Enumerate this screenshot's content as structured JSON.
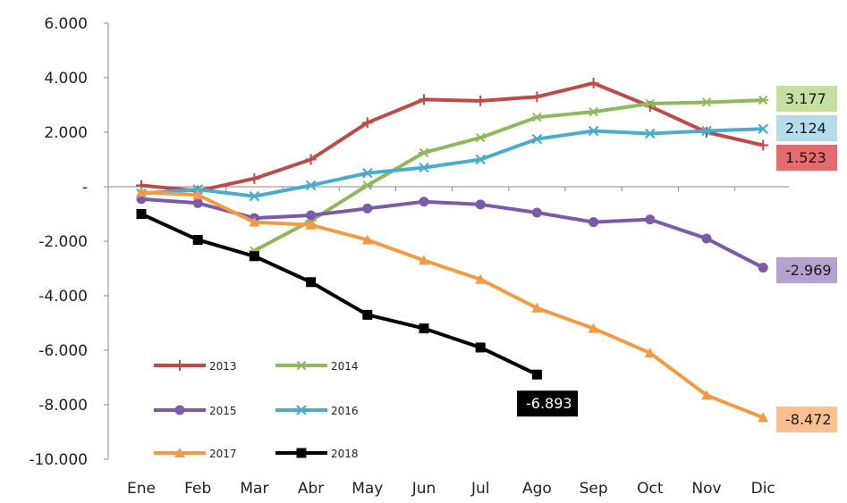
{
  "chart_data": {
    "type": "line",
    "title": "",
    "xlabel": "",
    "ylabel": "",
    "categories": [
      "Ene",
      "Feb",
      "Mar",
      "Abr",
      "May",
      "Jun",
      "Jul",
      "Ago",
      "Sep",
      "Oct",
      "Nov",
      "Dic"
    ],
    "ylim": [
      -10000,
      6000
    ],
    "y_ticks": [
      6000,
      4000,
      2000,
      0,
      -2000,
      -4000,
      -6000,
      -8000,
      -10000
    ],
    "y_tick_labels": [
      "6.000",
      "4.000",
      "2.000",
      "-",
      "-2.000",
      "-4.000",
      "-6.000",
      "-8.000",
      "-10.000"
    ],
    "grid": false,
    "legend_position": "bottom-left",
    "series": [
      {
        "name": "2013",
        "color": "#be4b48",
        "marker": "plus",
        "values": [
          50,
          -150,
          300,
          1000,
          2350,
          3200,
          3150,
          3300,
          3800,
          2950,
          2000,
          1523
        ],
        "end_label": "1.523",
        "end_label_bg": "#e46c6a",
        "end_label_fg": "#1a1a1a"
      },
      {
        "name": "2014",
        "color": "#8fb85a",
        "marker": "asterisk",
        "values": [
          null,
          null,
          -2350,
          -1250,
          50,
          1250,
          1800,
          2550,
          2750,
          3050,
          3100,
          3177
        ],
        "end_label": "3.177",
        "end_label_bg": "#c6dea0",
        "end_label_fg": "#1a1a1a"
      },
      {
        "name": "2015",
        "color": "#7b5ba8",
        "marker": "circle",
        "values": [
          -450,
          -600,
          -1150,
          -1050,
          -800,
          -550,
          -650,
          -950,
          -1300,
          -1200,
          -1900,
          -2969
        ],
        "end_label": "-2.969",
        "end_label_bg": "#b3a2cd",
        "end_label_fg": "#1a1a1a"
      },
      {
        "name": "2016",
        "color": "#4aaccb",
        "marker": "x",
        "values": [
          -250,
          -100,
          -350,
          50,
          500,
          700,
          1000,
          1750,
          2050,
          1950,
          2050,
          2124
        ],
        "end_label": "2.124",
        "end_label_bg": "#b4dcea",
        "end_label_fg": "#1a1a1a"
      },
      {
        "name": "2017",
        "color": "#f39a45",
        "marker": "triangle",
        "values": [
          -200,
          -300,
          -1300,
          -1400,
          -1950,
          -2700,
          -3400,
          -4450,
          -5200,
          -6100,
          -7650,
          -8472
        ],
        "end_label": "-8.472",
        "end_label_bg": "#fac090",
        "end_label_fg": "#1a1a1a"
      },
      {
        "name": "2018",
        "color": "#000000",
        "marker": "square",
        "values": [
          -1000,
          -1950,
          -2550,
          -3500,
          -4700,
          -5200,
          -5900,
          -6893,
          null,
          null,
          null,
          null
        ],
        "end_label": "-6.893",
        "end_label_bg": "#000000",
        "end_label_fg": "#ffffff"
      }
    ]
  }
}
